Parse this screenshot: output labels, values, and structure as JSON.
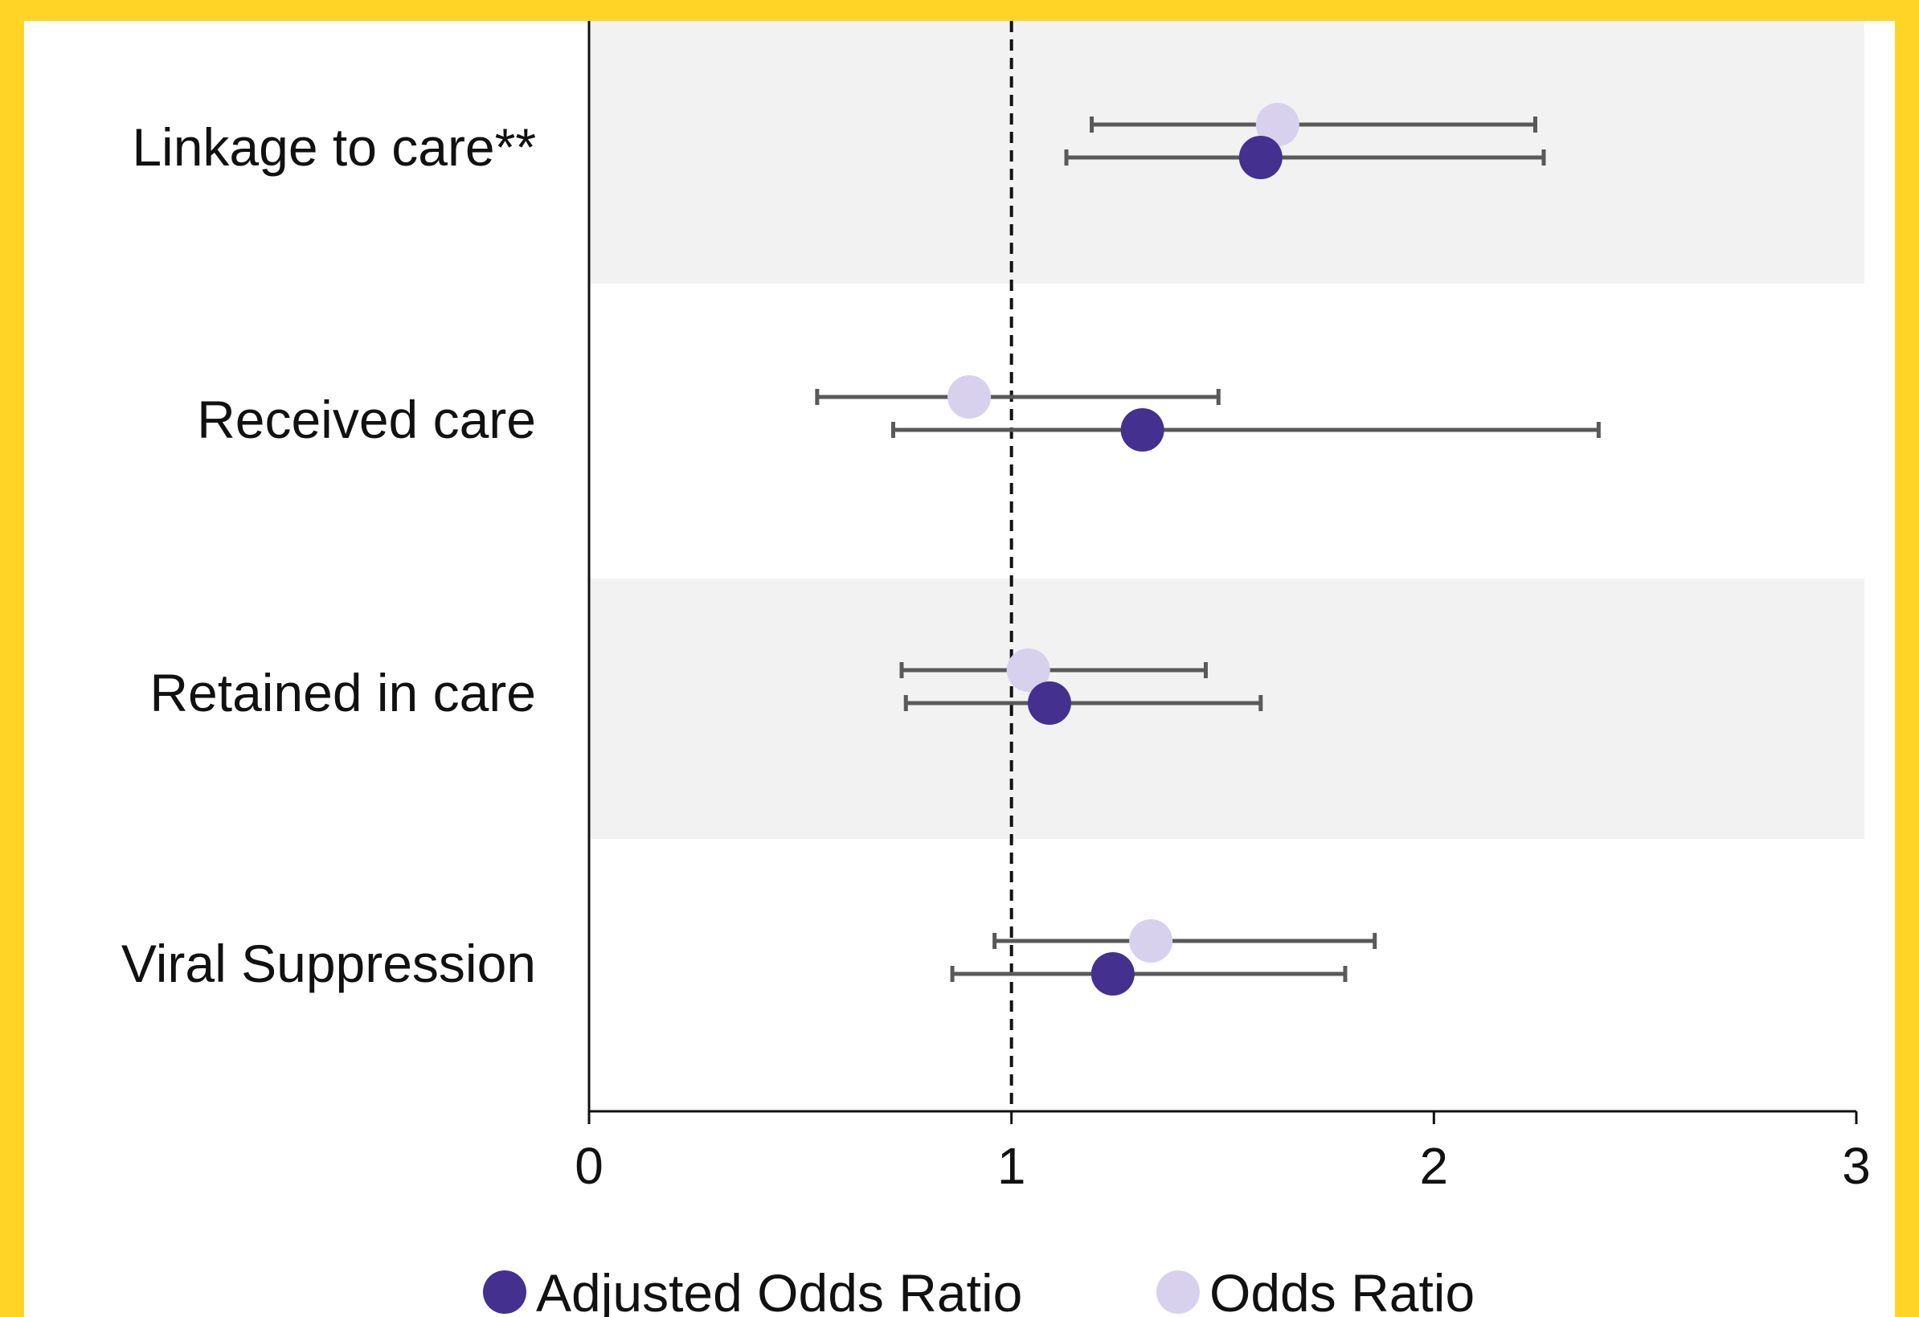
{
  "colors": {
    "frame": "#FFD426",
    "panel": "#FFFFFF",
    "band": "#F2F2F2",
    "whisker": "#595959",
    "axis": "#111111",
    "adjusted": "#43308F",
    "odds": "#D8D1EE"
  },
  "chart_data": {
    "type": "scatter",
    "subtype": "forest-plot",
    "title": "",
    "xlabel": "",
    "ylabel": "",
    "xlim": [
      0,
      3
    ],
    "xticks": [
      "0",
      "1",
      "2",
      "3"
    ],
    "reference_line": 1,
    "grid": false,
    "legend_position": "bottom",
    "categories": [
      "Linkage to care**",
      "Received care",
      "Retained in care",
      "Viral Suppression"
    ],
    "series": [
      {
        "name": "Odds Ratio",
        "values": [
          1.63,
          0.9,
          1.04,
          1.33
        ],
        "ci_low": [
          1.19,
          0.54,
          0.74,
          0.96
        ],
        "ci_high": [
          2.24,
          1.49,
          1.46,
          1.86
        ]
      },
      {
        "name": "Adjusted Odds Ratio",
        "values": [
          1.59,
          1.31,
          1.09,
          1.24
        ],
        "ci_low": [
          1.13,
          0.72,
          0.75,
          0.86
        ],
        "ci_high": [
          2.26,
          2.39,
          1.59,
          1.79
        ]
      }
    ],
    "legend": [
      {
        "label": "Adjusted Odds Ratio",
        "color": "#43308F"
      },
      {
        "label": "Odds Ratio",
        "color": "#D8D1EE"
      }
    ]
  }
}
